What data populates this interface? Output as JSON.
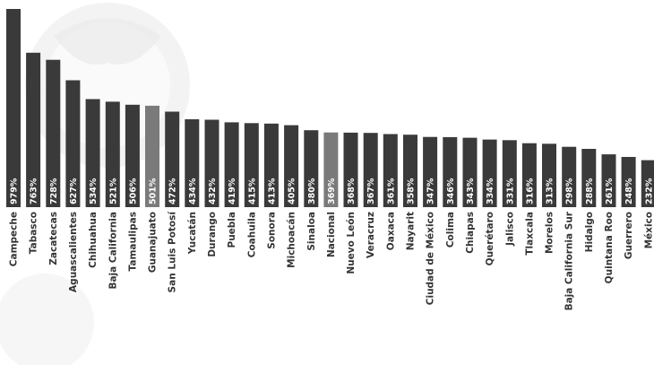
{
  "chart_data": {
    "type": "bar",
    "title": "",
    "xlabel": "",
    "ylabel": "",
    "ylim": [
      0,
      1000
    ],
    "grid": false,
    "legend": "none",
    "categories": [
      "Campeche",
      "Tabasco",
      "Zacatecas",
      "Aguascalientes",
      "Chihuahua",
      "Baja California",
      "Tamaulipas",
      "Guanajuato",
      "San Luis Potosí",
      "Yucatán",
      "Durango",
      "Puebla",
      "Coahuila",
      "Sonora",
      "Michoacán",
      "Sinaloa",
      "Nacional",
      "Nuevo León",
      "Veracruz",
      "Oaxaca",
      "Nayarit",
      "Ciudad de México",
      "Colima",
      "Chiapas",
      "Querétaro",
      "Jalisco",
      "Tlaxcala",
      "Morelos",
      "Baja California Sur",
      "Hidalgo",
      "Quintana Roo",
      "Guerrero",
      "México"
    ],
    "values": [
      979,
      763,
      728,
      627,
      534,
      521,
      506,
      501,
      472,
      434,
      432,
      419,
      415,
      413,
      405,
      380,
      369,
      368,
      367,
      361,
      358,
      347,
      346,
      343,
      334,
      331,
      316,
      313,
      298,
      288,
      261,
      248,
      232
    ],
    "value_labels": [
      "979%",
      "763%",
      "728%",
      "627%",
      "534%",
      "521%",
      "506%",
      "501%",
      "472%",
      "434%",
      "432%",
      "419%",
      "415%",
      "413%",
      "405%",
      "380%",
      "369%",
      "368%",
      "367%",
      "361%",
      "358%",
      "347%",
      "346%",
      "343%",
      "334%",
      "331%",
      "316%",
      "313%",
      "298%",
      "288%",
      "261%",
      "248%",
      "232%"
    ],
    "highlight": [
      "Guanajuato",
      "Nacional"
    ],
    "colors": {
      "bar": "#3a3a3a",
      "highlight": "#7a7a7a",
      "value_text": "#ffffff",
      "category_text": "#333333"
    }
  }
}
